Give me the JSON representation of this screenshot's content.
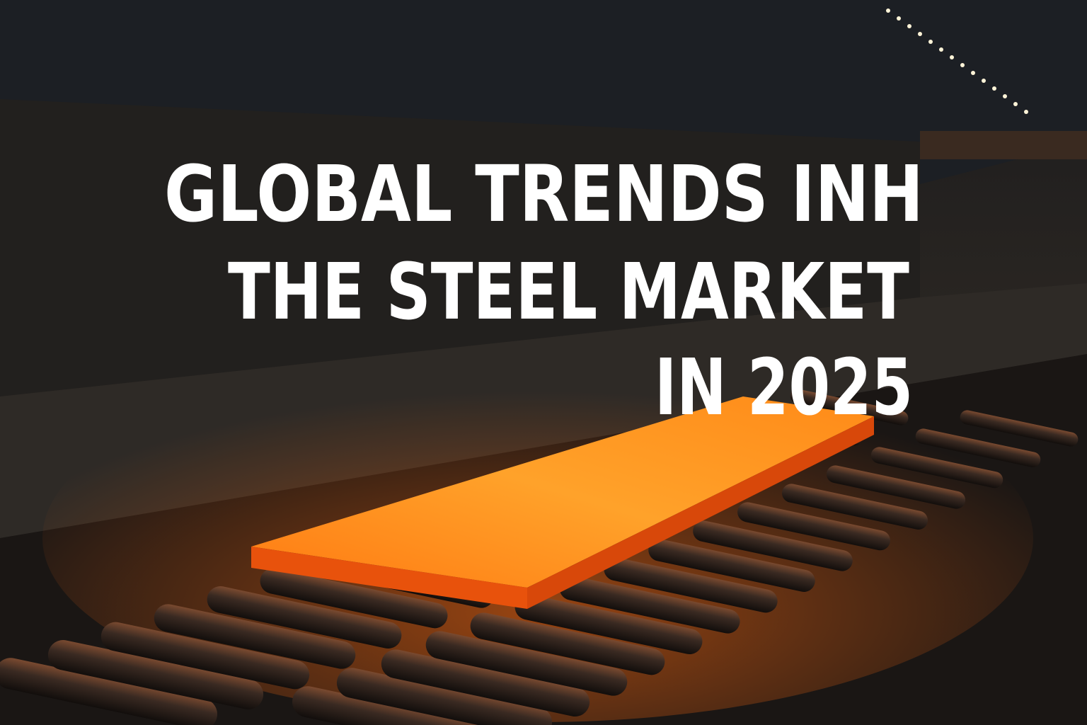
{
  "headline": {
    "lines": [
      "GLOBAL TRENDS INH",
      "THE STEEL MARKET",
      "IN 2025"
    ]
  }
}
